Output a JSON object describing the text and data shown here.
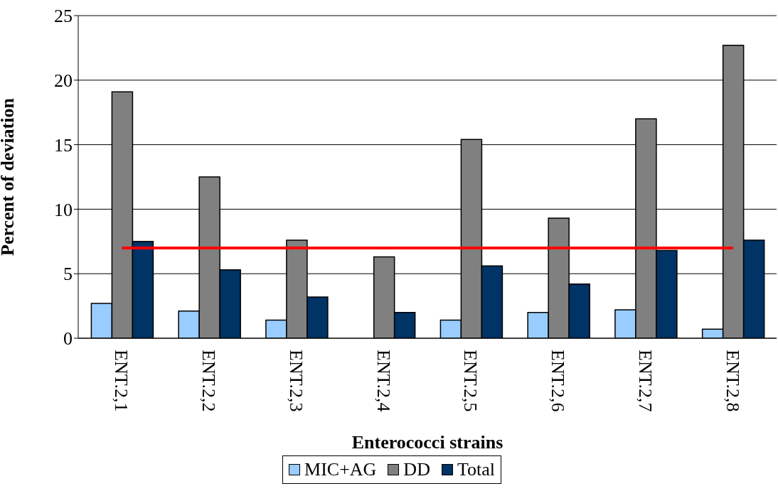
{
  "chart_data": {
    "type": "bar",
    "xlabel": "Enterococci strains",
    "ylabel": "Percent of deviation",
    "categories": [
      "ENT.2,1",
      "ENT.2,2",
      "ENT.2,3",
      "ENT.2,4",
      "ENT.2,5",
      "ENT.2,6",
      "ENT.2,7",
      "ENT.2,8"
    ],
    "series": [
      {
        "name": "MIC+AG",
        "color": "#99ccff",
        "values": [
          2.7,
          2.1,
          1.4,
          0,
          1.4,
          2.0,
          2.2,
          0.7
        ]
      },
      {
        "name": "DD",
        "color": "#808080",
        "values": [
          19.1,
          12.5,
          7.6,
          6.3,
          15.4,
          9.3,
          17.0,
          22.7
        ]
      },
      {
        "name": "Total",
        "color": "#003366",
        "values": [
          7.5,
          5.3,
          3.2,
          2.0,
          5.6,
          4.2,
          6.8,
          7.6
        ]
      },
      {
        "type": "line",
        "color": "#ff0000",
        "values": [
          7,
          7,
          7,
          7,
          7,
          7,
          7,
          7
        ]
      }
    ],
    "ylim": [
      0,
      25
    ],
    "yticks": [
      0,
      5,
      10,
      15,
      20,
      25
    ],
    "grid": "y",
    "legend": "bottom",
    "marker": "none",
    "line_style": "solid"
  }
}
